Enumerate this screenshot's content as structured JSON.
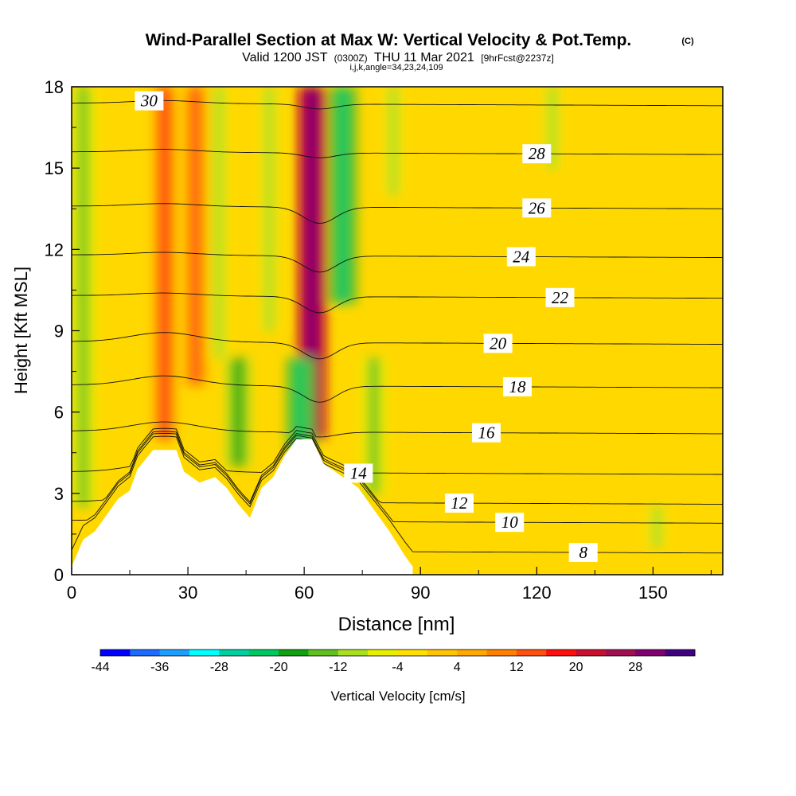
{
  "header": {
    "title": "Wind-Parallel Section at Max W: Vertical Velocity & Pot.Temp.",
    "copyright": "(C)",
    "valid_main": "Valid 1200 JST",
    "valid_utc": "(0300Z)",
    "valid_date": "THU 11 Mar 2021",
    "forecast": "[9hrFcst@2237z]",
    "section_params": "i,j,k,angle=34,23,24,109"
  },
  "chart_data": {
    "type": "heatmap",
    "xlabel": "Distance [nm]",
    "ylabel": "Height [Kft MSL]",
    "xlim": [
      0,
      168
    ],
    "ylim": [
      0,
      18
    ],
    "x_ticks": [
      "0",
      "30",
      "60",
      "90",
      "120",
      "150"
    ],
    "y_ticks": [
      "0",
      "3",
      "6",
      "9",
      "12",
      "15",
      "18"
    ],
    "colorbar": {
      "label": "Vertical Velocity [cm/s]",
      "tick_labels": [
        "-44",
        "-36",
        "-28",
        "-20",
        "-12",
        "-4",
        "4",
        "12",
        "20",
        "28"
      ],
      "colors": [
        "#0000ff",
        "#1e6cff",
        "#1e9fff",
        "#00ffff",
        "#00d0a0",
        "#00c860",
        "#10a010",
        "#60c020",
        "#a8e020",
        "#e8f000",
        "#ffe000",
        "#ffc400",
        "#ffa800",
        "#ff8000",
        "#ff5010",
        "#ff1010",
        "#c81030",
        "#a01050",
        "#800070",
        "#400080"
      ]
    },
    "terrain_kft": [
      [
        0,
        0.3
      ],
      [
        3,
        1.3
      ],
      [
        6,
        1.6
      ],
      [
        9,
        2.2
      ],
      [
        12,
        2.8
      ],
      [
        15,
        3.1
      ],
      [
        17,
        3.9
      ],
      [
        21,
        4.6
      ],
      [
        24,
        4.6
      ],
      [
        27,
        4.6
      ],
      [
        29,
        3.8
      ],
      [
        33,
        3.4
      ],
      [
        37,
        3.6
      ],
      [
        40,
        3.2
      ],
      [
        43,
        2.6
      ],
      [
        46,
        2.1
      ],
      [
        49,
        3.2
      ],
      [
        52,
        3.6
      ],
      [
        55,
        4.4
      ],
      [
        58,
        5.0
      ],
      [
        62,
        5.0
      ],
      [
        65,
        4.1
      ],
      [
        69,
        3.7
      ],
      [
        74,
        3.2
      ],
      [
        77,
        2.6
      ],
      [
        82,
        1.6
      ],
      [
        86,
        0.7
      ],
      [
        88,
        0.3
      ]
    ],
    "vertical_velocity_features": [
      {
        "x": 3,
        "y_range": [
          2.5,
          18
        ],
        "value": -16
      },
      {
        "x": 24,
        "y_range": [
          5,
          18
        ],
        "value": 16
      },
      {
        "x": 32,
        "y_range": [
          7,
          18
        ],
        "value": 12
      },
      {
        "x": 38,
        "y_range": [
          8,
          18
        ],
        "value": -12
      },
      {
        "x": 43,
        "y_range": [
          4,
          8
        ],
        "value": -18
      },
      {
        "x": 51,
        "y_range": [
          9,
          18
        ],
        "value": -12
      },
      {
        "x": 62,
        "y_range": [
          5,
          18
        ],
        "value": 30
      },
      {
        "x": 59,
        "y_range": [
          4.5,
          8
        ],
        "value": -22
      },
      {
        "x": 70,
        "y_range": [
          10,
          18
        ],
        "value": -22
      },
      {
        "x": 78,
        "y_range": [
          3,
          8
        ],
        "value": -14
      },
      {
        "x": 83,
        "y_range": [
          14,
          18
        ],
        "value": -10
      },
      {
        "x": 124,
        "y_range": [
          15,
          18
        ],
        "value": -10
      },
      {
        "x": 151,
        "y_range": [
          1,
          2.5
        ],
        "value": -10
      }
    ],
    "isentropes": [
      {
        "value": 8,
        "label": "8"
      },
      {
        "value": 10,
        "label": "10"
      },
      {
        "value": 12,
        "label": "12"
      },
      {
        "value": 14,
        "label": "14"
      },
      {
        "value": 16,
        "label": "16"
      },
      {
        "value": 18,
        "label": "18"
      },
      {
        "value": 20,
        "label": "20"
      },
      {
        "value": 22,
        "label": "22"
      },
      {
        "value": 24,
        "label": "24"
      },
      {
        "value": 26,
        "label": "26"
      },
      {
        "value": 28,
        "label": "28"
      },
      {
        "value": 30,
        "label": "30"
      }
    ]
  }
}
